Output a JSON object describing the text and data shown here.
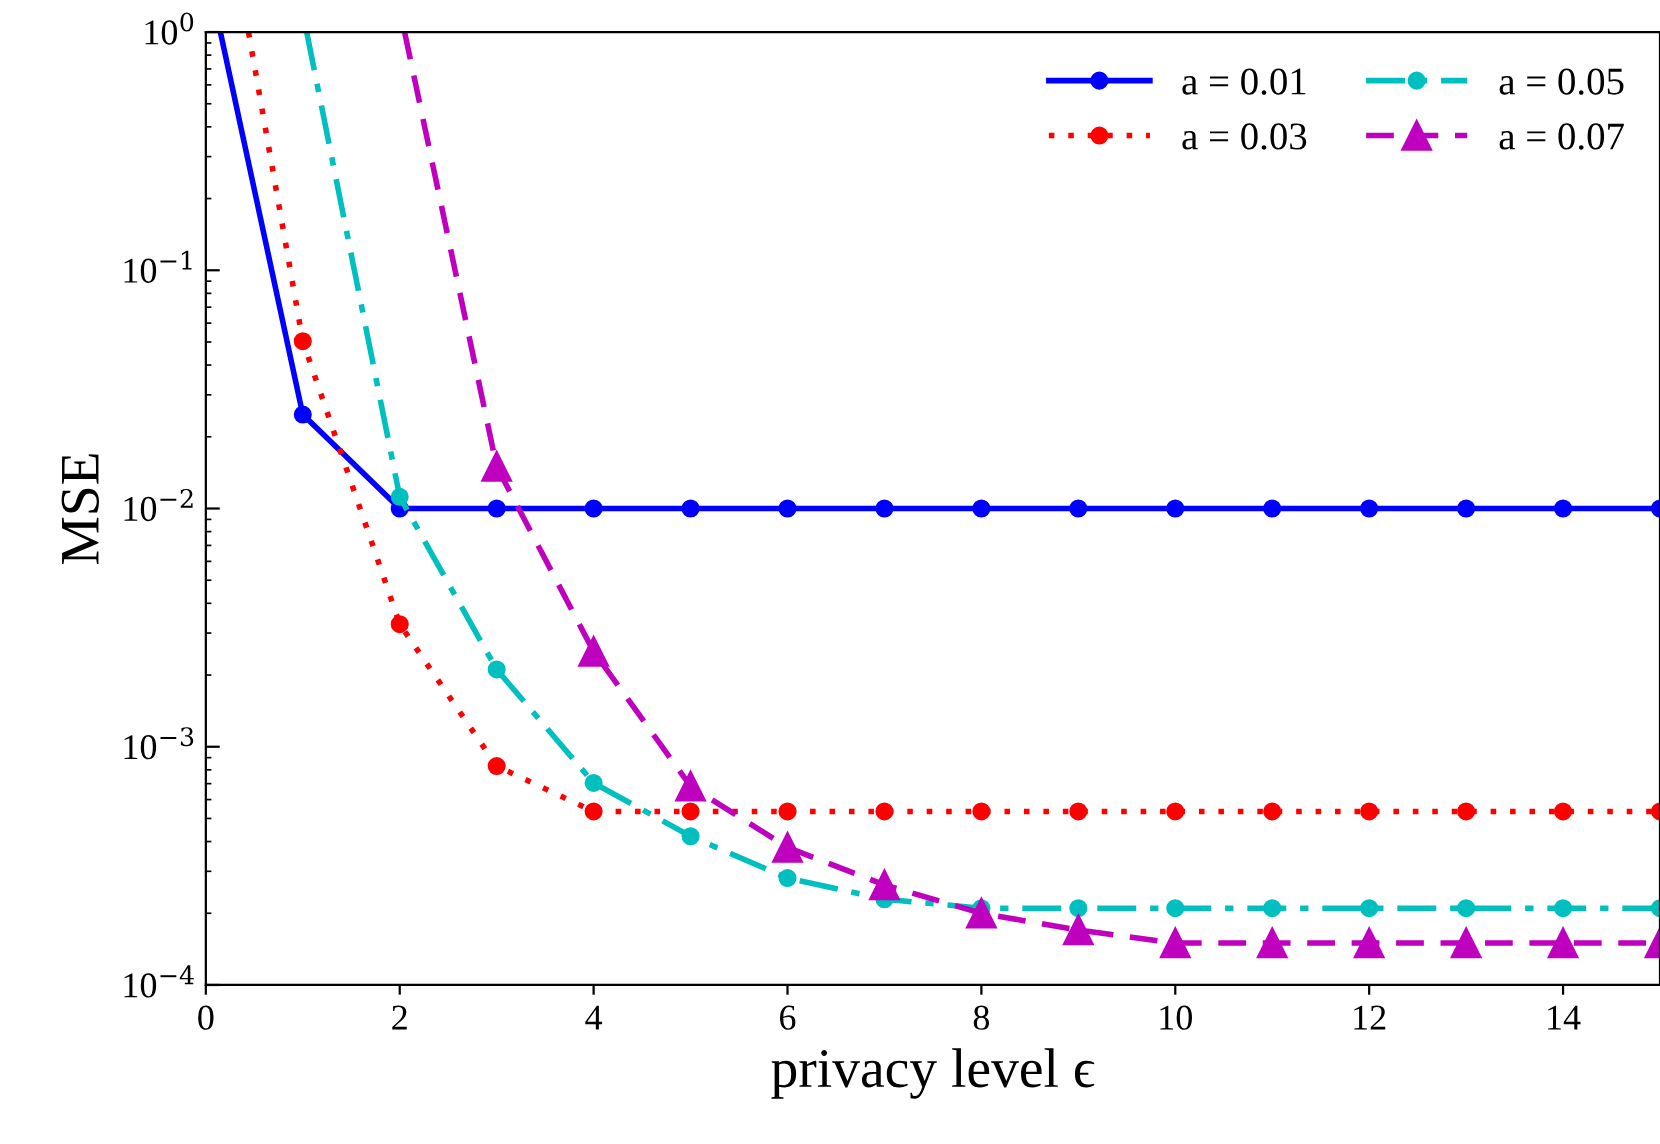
{
  "chart_data": {
    "type": "line",
    "xlabel": "privacy level ϵ",
    "ylabel": "MSE",
    "log": "y",
    "xlim": [
      0,
      15
    ],
    "xticks": [
      0,
      2,
      4,
      6,
      8,
      10,
      12,
      14
    ],
    "ylim": [
      0.0001,
      1
    ],
    "yticks": [
      {
        "value": 0.0001,
        "label": "10$^{−4}$"
      },
      {
        "value": 0.001,
        "label": "10$^{−3}$"
      },
      {
        "value": 0.01,
        "label": "10$^{−2}$"
      },
      {
        "value": 0.1,
        "label": "10$^{−1}$"
      },
      {
        "value": 1,
        "label": "10$^{0}$"
      }
    ],
    "grid": false,
    "legend": "top right",
    "series": [
      {
        "name": "a = 0.01",
        "color": "#0000ff",
        "marker": "circle",
        "line_style": "solid",
        "x": [
          0.15,
          1,
          2,
          3,
          4,
          5,
          6,
          7,
          8,
          9,
          10,
          11,
          12,
          13,
          14,
          15
        ],
        "values": [
          1,
          0.0248,
          0.01,
          0.01,
          0.01,
          0.01,
          0.01,
          0.01,
          0.01,
          0.01,
          0.01,
          0.01,
          0.01,
          0.01,
          0.01,
          0.01
        ]
      },
      {
        "name": "a = 0.03",
        "color": "#ff0000",
        "marker": "circle",
        "line_style": "dotted",
        "x": [
          0.44,
          1,
          2,
          3,
          4,
          5,
          6,
          7,
          8,
          9,
          10,
          11,
          12,
          13,
          14,
          15
        ],
        "values": [
          1,
          0.0504,
          0.00327,
          0.00083,
          0.000535,
          0.000535,
          0.000535,
          0.000535,
          0.000535,
          0.000535,
          0.000535,
          0.000535,
          0.000535,
          0.000535,
          0.000535,
          0.000535
        ]
      },
      {
        "name": "a = 0.05",
        "color": "#00bfbf",
        "marker": "circle",
        "line_style": "dashdot",
        "x": [
          1.04,
          2,
          3,
          4,
          5,
          6,
          7,
          8,
          9,
          10,
          11,
          12,
          13,
          14,
          15
        ],
        "values": [
          1,
          0.0112,
          0.00211,
          0.000705,
          0.000421,
          0.000281,
          0.000229,
          0.00021,
          0.00021,
          0.00021,
          0.00021,
          0.00021,
          0.00021,
          0.00021,
          0.00021
        ]
      },
      {
        "name": "a = 0.07",
        "color": "#bf00bf",
        "marker": "triangle",
        "line_style": "dashed",
        "x": [
          2.05,
          3,
          4,
          5,
          6,
          7,
          8,
          9,
          10,
          11,
          12,
          13,
          14,
          15
        ],
        "values": [
          1,
          0.015,
          0.00251,
          0.000683,
          0.000378,
          0.000263,
          0.0002,
          0.00017,
          0.00015,
          0.00015,
          0.00015,
          0.00015,
          0.00015,
          0.00015
        ]
      }
    ]
  }
}
